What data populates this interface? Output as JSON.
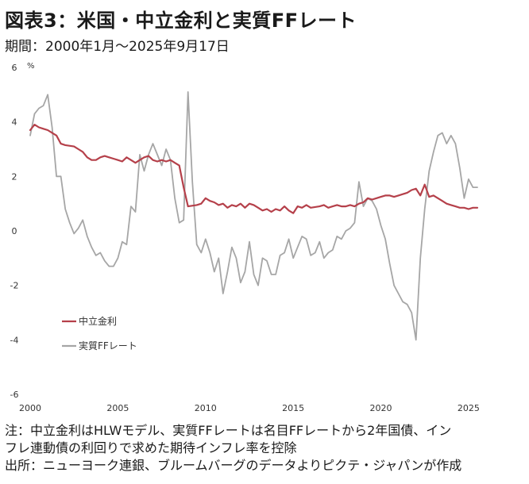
{
  "header": {
    "title": "図表3：米国・中立金利と実質FFレート",
    "period": "期間：2000年1月～2025年9月17日",
    "unit": "%"
  },
  "footnotes": {
    "note_line1": "注：中立金利はHLWモデル、実質FFレートは名目FFレートから2年国債、イン",
    "note_line2": "フレ連動債の利回りで求めた期待インフレ率を控除",
    "source": "出所：ニューヨーク連銀、ブルームバーグのデータよりピクテ・ジャパンが作成"
  },
  "chart_data": {
    "type": "line",
    "xlim": [
      2000,
      2026
    ],
    "ylim": [
      -6,
      6
    ],
    "x_ticks": [
      2000,
      2005,
      2010,
      2015,
      2020,
      2025
    ],
    "y_ticks": [
      6,
      4,
      2,
      0,
      -2,
      -4,
      -6
    ],
    "grid": false,
    "legend_position": "lower-left",
    "series": [
      {
        "name": "中立金利",
        "color": "#b5404a",
        "points": [
          [
            2000.0,
            3.7
          ],
          [
            2000.25,
            3.9
          ],
          [
            2000.5,
            3.8
          ],
          [
            2000.75,
            3.75
          ],
          [
            2001.0,
            3.7
          ],
          [
            2001.25,
            3.6
          ],
          [
            2001.5,
            3.5
          ],
          [
            2001.75,
            3.2
          ],
          [
            2002.0,
            3.15
          ],
          [
            2002.5,
            3.1
          ],
          [
            2002.75,
            3.0
          ],
          [
            2003.0,
            2.9
          ],
          [
            2003.25,
            2.7
          ],
          [
            2003.5,
            2.6
          ],
          [
            2003.75,
            2.6
          ],
          [
            2004.0,
            2.7
          ],
          [
            2004.25,
            2.75
          ],
          [
            2004.5,
            2.7
          ],
          [
            2004.75,
            2.65
          ],
          [
            2005.0,
            2.6
          ],
          [
            2005.25,
            2.55
          ],
          [
            2005.5,
            2.7
          ],
          [
            2005.75,
            2.6
          ],
          [
            2006.0,
            2.5
          ],
          [
            2006.25,
            2.6
          ],
          [
            2006.5,
            2.7
          ],
          [
            2006.75,
            2.75
          ],
          [
            2007.0,
            2.6
          ],
          [
            2007.25,
            2.55
          ],
          [
            2007.5,
            2.6
          ],
          [
            2007.75,
            2.55
          ],
          [
            2008.0,
            2.6
          ],
          [
            2008.25,
            2.5
          ],
          [
            2008.5,
            2.4
          ],
          [
            2008.75,
            1.6
          ],
          [
            2009.0,
            0.9
          ],
          [
            2009.5,
            0.95
          ],
          [
            2009.75,
            1.0
          ],
          [
            2010.0,
            1.2
          ],
          [
            2010.25,
            1.1
          ],
          [
            2010.5,
            1.05
          ],
          [
            2010.75,
            0.95
          ],
          [
            2011.0,
            1.0
          ],
          [
            2011.25,
            0.85
          ],
          [
            2011.5,
            0.95
          ],
          [
            2011.75,
            0.9
          ],
          [
            2012.0,
            1.0
          ],
          [
            2012.25,
            0.85
          ],
          [
            2012.5,
            1.0
          ],
          [
            2012.75,
            0.95
          ],
          [
            2013.0,
            0.85
          ],
          [
            2013.25,
            0.75
          ],
          [
            2013.5,
            0.8
          ],
          [
            2013.75,
            0.7
          ],
          [
            2014.0,
            0.8
          ],
          [
            2014.25,
            0.75
          ],
          [
            2014.5,
            0.9
          ],
          [
            2014.75,
            0.75
          ],
          [
            2015.0,
            0.65
          ],
          [
            2015.25,
            0.9
          ],
          [
            2015.5,
            0.85
          ],
          [
            2015.75,
            0.95
          ],
          [
            2016.0,
            0.85
          ],
          [
            2016.5,
            0.9
          ],
          [
            2016.75,
            0.95
          ],
          [
            2017.0,
            0.85
          ],
          [
            2017.25,
            0.9
          ],
          [
            2017.5,
            0.95
          ],
          [
            2017.75,
            0.9
          ],
          [
            2018.0,
            0.9
          ],
          [
            2018.25,
            0.95
          ],
          [
            2018.5,
            0.9
          ],
          [
            2018.75,
            1.0
          ],
          [
            2019.0,
            1.05
          ],
          [
            2019.25,
            1.2
          ],
          [
            2019.5,
            1.15
          ],
          [
            2019.75,
            1.2
          ],
          [
            2020.0,
            1.25
          ],
          [
            2020.25,
            1.3
          ],
          [
            2020.5,
            1.3
          ],
          [
            2020.75,
            1.25
          ],
          [
            2021.0,
            1.3
          ],
          [
            2021.25,
            1.35
          ],
          [
            2021.5,
            1.4
          ],
          [
            2021.75,
            1.5
          ],
          [
            2022.0,
            1.55
          ],
          [
            2022.25,
            1.3
          ],
          [
            2022.5,
            1.7
          ],
          [
            2022.75,
            1.25
          ],
          [
            2023.0,
            1.3
          ],
          [
            2023.25,
            1.2
          ],
          [
            2023.5,
            1.1
          ],
          [
            2023.75,
            1.0
          ],
          [
            2024.0,
            0.95
          ],
          [
            2024.25,
            0.9
          ],
          [
            2024.5,
            0.85
          ],
          [
            2024.75,
            0.85
          ],
          [
            2025.0,
            0.8
          ],
          [
            2025.25,
            0.85
          ],
          [
            2025.5,
            0.85
          ]
        ]
      },
      {
        "name": "実質FFレート",
        "color": "#a6a6a6",
        "points": [
          [
            2000.0,
            3.5
          ],
          [
            2000.25,
            4.3
          ],
          [
            2000.5,
            4.5
          ],
          [
            2000.75,
            4.6
          ],
          [
            2001.0,
            5.0
          ],
          [
            2001.25,
            3.8
          ],
          [
            2001.5,
            2.0
          ],
          [
            2001.75,
            2.0
          ],
          [
            2002.0,
            0.8
          ],
          [
            2002.25,
            0.3
          ],
          [
            2002.5,
            -0.1
          ],
          [
            2002.75,
            0.1
          ],
          [
            2003.0,
            0.4
          ],
          [
            2003.25,
            -0.2
          ],
          [
            2003.5,
            -0.6
          ],
          [
            2003.75,
            -0.9
          ],
          [
            2004.0,
            -0.8
          ],
          [
            2004.25,
            -1.1
          ],
          [
            2004.5,
            -1.3
          ],
          [
            2004.75,
            -1.3
          ],
          [
            2005.0,
            -1.0
          ],
          [
            2005.25,
            -0.4
          ],
          [
            2005.5,
            -0.5
          ],
          [
            2005.75,
            0.9
          ],
          [
            2006.0,
            0.7
          ],
          [
            2006.25,
            2.8
          ],
          [
            2006.5,
            2.2
          ],
          [
            2006.75,
            2.8
          ],
          [
            2007.0,
            3.2
          ],
          [
            2007.25,
            2.8
          ],
          [
            2007.5,
            2.4
          ],
          [
            2007.75,
            3.0
          ],
          [
            2008.0,
            2.6
          ],
          [
            2008.25,
            1.2
          ],
          [
            2008.5,
            0.3
          ],
          [
            2008.75,
            0.4
          ],
          [
            2009.0,
            5.1
          ],
          [
            2009.25,
            1.8
          ],
          [
            2009.5,
            -0.5
          ],
          [
            2009.75,
            -0.8
          ],
          [
            2010.0,
            -0.3
          ],
          [
            2010.25,
            -0.8
          ],
          [
            2010.5,
            -1.5
          ],
          [
            2010.75,
            -1.0
          ],
          [
            2011.0,
            -2.3
          ],
          [
            2011.25,
            -1.5
          ],
          [
            2011.5,
            -0.6
          ],
          [
            2011.75,
            -1.0
          ],
          [
            2012.0,
            -1.9
          ],
          [
            2012.25,
            -1.5
          ],
          [
            2012.5,
            -0.4
          ],
          [
            2012.75,
            -1.6
          ],
          [
            2013.0,
            -2.0
          ],
          [
            2013.25,
            -1.0
          ],
          [
            2013.5,
            -1.1
          ],
          [
            2013.75,
            -1.6
          ],
          [
            2014.0,
            -1.6
          ],
          [
            2014.25,
            -0.9
          ],
          [
            2014.5,
            -0.8
          ],
          [
            2014.75,
            -0.3
          ],
          [
            2015.0,
            -1.0
          ],
          [
            2015.25,
            -0.6
          ],
          [
            2015.5,
            -0.2
          ],
          [
            2015.75,
            -0.3
          ],
          [
            2016.0,
            -0.9
          ],
          [
            2016.25,
            -0.8
          ],
          [
            2016.5,
            -0.4
          ],
          [
            2016.75,
            -1.0
          ],
          [
            2017.0,
            -0.8
          ],
          [
            2017.25,
            -0.7
          ],
          [
            2017.5,
            -0.2
          ],
          [
            2017.75,
            -0.3
          ],
          [
            2018.0,
            0.0
          ],
          [
            2018.25,
            0.1
          ],
          [
            2018.5,
            0.3
          ],
          [
            2018.75,
            1.8
          ],
          [
            2019.0,
            0.9
          ],
          [
            2019.25,
            1.2
          ],
          [
            2019.5,
            1.1
          ],
          [
            2019.75,
            0.8
          ],
          [
            2020.0,
            0.2
          ],
          [
            2020.25,
            -0.3
          ],
          [
            2020.5,
            -1.2
          ],
          [
            2020.75,
            -2.0
          ],
          [
            2021.0,
            -2.3
          ],
          [
            2021.25,
            -2.6
          ],
          [
            2021.5,
            -2.7
          ],
          [
            2021.75,
            -3.0
          ],
          [
            2022.0,
            -4.0
          ],
          [
            2022.25,
            -1.0
          ],
          [
            2022.5,
            0.8
          ],
          [
            2022.75,
            2.2
          ],
          [
            2023.0,
            2.9
          ],
          [
            2023.25,
            3.5
          ],
          [
            2023.5,
            3.6
          ],
          [
            2023.75,
            3.2
          ],
          [
            2024.0,
            3.5
          ],
          [
            2024.25,
            3.2
          ],
          [
            2024.5,
            2.3
          ],
          [
            2024.75,
            1.2
          ],
          [
            2025.0,
            1.9
          ],
          [
            2025.25,
            1.6
          ],
          [
            2025.5,
            1.6
          ]
        ]
      }
    ]
  }
}
